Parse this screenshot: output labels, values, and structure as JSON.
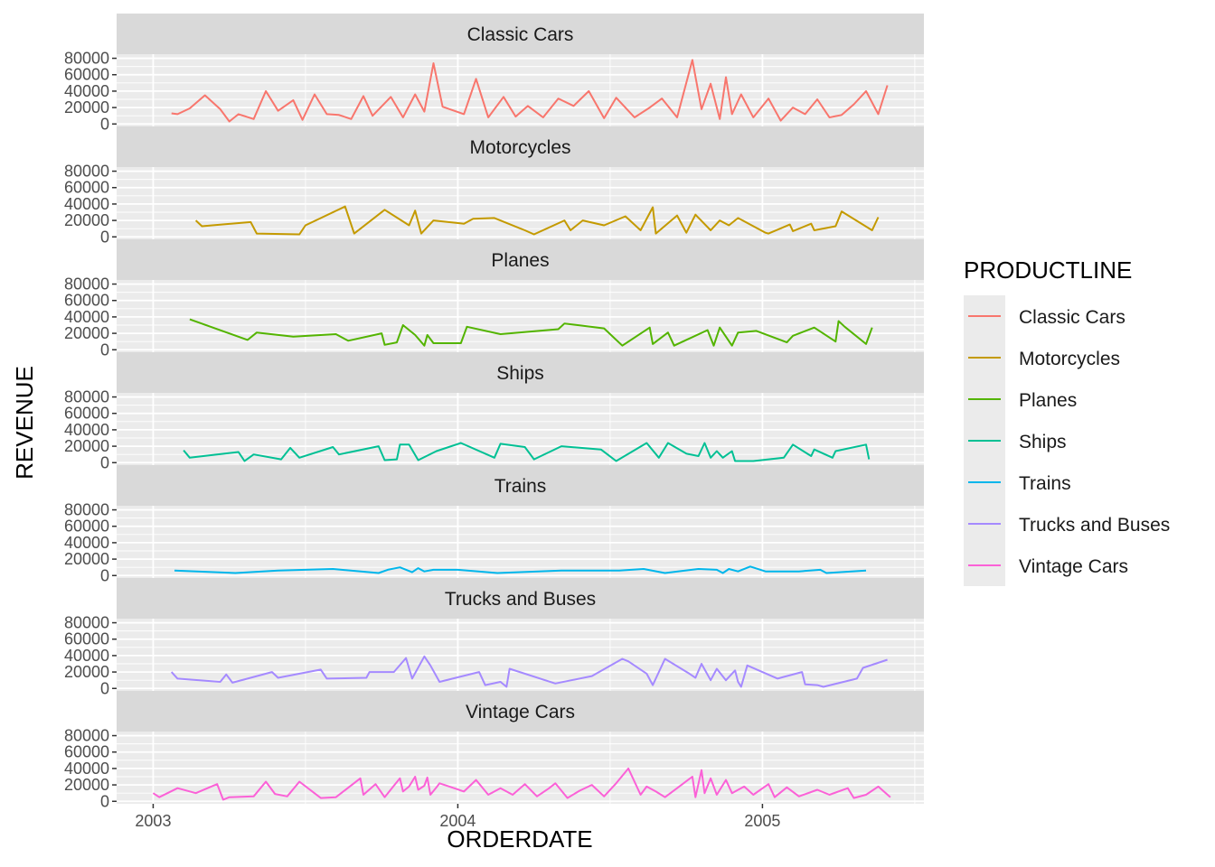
{
  "chart_data": {
    "type": "line",
    "facet": "vertical",
    "xlabel": "ORDERDATE",
    "ylabel": "REVENUE",
    "x_ticks": [
      "2003",
      "2004",
      "2005"
    ],
    "x_tick_values": [
      2003.0,
      2004.0,
      2005.0
    ],
    "xlim": [
      2002.88,
      2005.53
    ],
    "y_ticks": [
      "0",
      "20000",
      "40000",
      "60000",
      "80000"
    ],
    "y_tick_values": [
      0,
      20000,
      40000,
      60000,
      80000
    ],
    "ylim": [
      -3000,
      85000
    ],
    "grid": true,
    "legend": {
      "title": "PRODUCTLINE",
      "position": "right"
    },
    "series": [
      {
        "name": "Classic Cars",
        "color": "#F8766D",
        "x": [
          2003.06,
          2003.08,
          2003.12,
          2003.17,
          2003.22,
          2003.25,
          2003.28,
          2003.33,
          2003.37,
          2003.41,
          2003.46,
          2003.49,
          2003.53,
          2003.57,
          2003.61,
          2003.65,
          2003.69,
          2003.72,
          2003.78,
          2003.82,
          2003.86,
          2003.89,
          2003.92,
          2003.95,
          2004.02,
          2004.06,
          2004.1,
          2004.15,
          2004.19,
          2004.23,
          2004.28,
          2004.33,
          2004.38,
          2004.43,
          2004.48,
          2004.52,
          2004.58,
          2004.63,
          2004.67,
          2004.72,
          2004.77,
          2004.8,
          2004.83,
          2004.86,
          2004.88,
          2004.9,
          2004.93,
          2004.97,
          2005.02,
          2005.06,
          2005.1,
          2005.14,
          2005.18,
          2005.22,
          2005.26,
          2005.3,
          2005.34,
          2005.38,
          2005.41
        ],
        "y": [
          13000,
          12000,
          19000,
          35000,
          18000,
          3000,
          12000,
          6000,
          40000,
          16000,
          29000,
          5000,
          36000,
          12000,
          11000,
          6000,
          34000,
          10000,
          33000,
          8000,
          36000,
          15000,
          74000,
          21000,
          12000,
          55000,
          8000,
          33000,
          9000,
          22000,
          8000,
          31000,
          22000,
          40000,
          7000,
          32000,
          8000,
          20000,
          31000,
          8000,
          78000,
          18000,
          49000,
          6000,
          57000,
          12000,
          36000,
          8000,
          31000,
          4000,
          20000,
          12000,
          30000,
          8000,
          11000,
          24000,
          40000,
          12000,
          47000
        ]
      },
      {
        "name": "Motorcycles",
        "color": "#C49A00",
        "x": [
          2003.14,
          2003.16,
          2003.32,
          2003.34,
          2003.48,
          2003.5,
          2003.63,
          2003.66,
          2003.76,
          2003.84,
          2003.86,
          2003.88,
          2003.92,
          2004.02,
          2004.05,
          2004.12,
          2004.22,
          2004.25,
          2004.35,
          2004.37,
          2004.41,
          2004.48,
          2004.55,
          2004.6,
          2004.64,
          2004.65,
          2004.72,
          2004.75,
          2004.78,
          2004.83,
          2004.86,
          2004.89,
          2004.92,
          2005.01,
          2005.02,
          2005.09,
          2005.1,
          2005.16,
          2005.17,
          2005.24,
          2005.26,
          2005.36,
          2005.38
        ],
        "y": [
          20000,
          13000,
          18000,
          4000,
          3000,
          14000,
          37000,
          4000,
          33000,
          14000,
          32000,
          4000,
          20000,
          16000,
          22000,
          23000,
          8000,
          3000,
          20000,
          8000,
          20000,
          14000,
          25000,
          8000,
          36000,
          4000,
          26000,
          5000,
          27000,
          8000,
          20000,
          14000,
          23000,
          5000,
          4000,
          15000,
          7000,
          16000,
          8000,
          13000,
          31000,
          8000,
          24000
        ]
      },
      {
        "name": "Planes",
        "color": "#53B400",
        "x": [
          2003.12,
          2003.31,
          2003.34,
          2003.46,
          2003.6,
          2003.64,
          2003.75,
          2003.76,
          2003.8,
          2003.82,
          2003.86,
          2003.89,
          2003.9,
          2003.92,
          2004.01,
          2004.03,
          2004.14,
          2004.33,
          2004.35,
          2004.48,
          2004.54,
          2004.63,
          2004.64,
          2004.69,
          2004.71,
          2004.82,
          2004.84,
          2004.86,
          2004.9,
          2004.92,
          2004.98,
          2005.08,
          2005.1,
          2005.17,
          2005.24,
          2005.25,
          2005.27,
          2005.34,
          2005.36
        ],
        "y": [
          37000,
          12000,
          21000,
          16000,
          19000,
          11000,
          20000,
          6000,
          9000,
          30000,
          18000,
          5000,
          18000,
          8000,
          8000,
          28000,
          19000,
          25000,
          32000,
          26000,
          5000,
          27000,
          7000,
          21000,
          5000,
          24000,
          5000,
          27000,
          5000,
          21000,
          23000,
          9000,
          17000,
          27000,
          10000,
          35000,
          28000,
          7000,
          27000
        ]
      },
      {
        "name": "Ships",
        "color": "#00C094",
        "x": [
          2003.1,
          2003.12,
          2003.28,
          2003.3,
          2003.33,
          2003.42,
          2003.45,
          2003.48,
          2003.59,
          2003.61,
          2003.74,
          2003.76,
          2003.8,
          2003.81,
          2003.84,
          2003.87,
          2003.93,
          2004.01,
          2004.12,
          2004.14,
          2004.22,
          2004.25,
          2004.34,
          2004.47,
          2004.52,
          2004.62,
          2004.66,
          2004.69,
          2004.75,
          2004.79,
          2004.81,
          2004.83,
          2004.85,
          2004.87,
          2004.9,
          2004.91,
          2004.97,
          2005.07,
          2005.1,
          2005.16,
          2005.17,
          2005.23,
          2005.24,
          2005.34,
          2005.35
        ],
        "y": [
          15000,
          6000,
          13000,
          2000,
          10000,
          4000,
          18000,
          6000,
          19000,
          10000,
          20000,
          3000,
          4000,
          22000,
          22000,
          3000,
          14000,
          24000,
          6000,
          23000,
          19000,
          4000,
          20000,
          16000,
          2000,
          24000,
          6000,
          24000,
          11000,
          8000,
          24000,
          6000,
          14000,
          6000,
          14000,
          2000,
          2000,
          6000,
          22000,
          8000,
          16000,
          6000,
          14000,
          22000,
          4000
        ]
      },
      {
        "name": "Trains",
        "color": "#00B6EB",
        "x": [
          2003.07,
          2003.27,
          2003.41,
          2003.59,
          2003.74,
          2003.77,
          2003.81,
          2003.85,
          2003.87,
          2003.89,
          2003.92,
          2004.0,
          2004.13,
          2004.34,
          2004.53,
          2004.61,
          2004.68,
          2004.79,
          2004.85,
          2004.87,
          2004.89,
          2004.92,
          2004.96,
          2005.01,
          2005.12,
          2005.19,
          2005.21,
          2005.34
        ],
        "y": [
          6000,
          3000,
          6000,
          8000,
          3000,
          7000,
          10000,
          4000,
          9000,
          5000,
          7000,
          7000,
          3000,
          6000,
          6000,
          8000,
          3000,
          8000,
          7000,
          3000,
          8000,
          5000,
          11000,
          5000,
          5000,
          7000,
          3000,
          6000
        ]
      },
      {
        "name": "Trucks and Buses",
        "color": "#A58AFF",
        "x": [
          2003.06,
          2003.08,
          2003.22,
          2003.24,
          2003.26,
          2003.39,
          2003.41,
          2003.55,
          2003.57,
          2003.7,
          2003.71,
          2003.79,
          2003.83,
          2003.85,
          2003.89,
          2003.91,
          2003.94,
          2004.07,
          2004.09,
          2004.14,
          2004.16,
          2004.17,
          2004.32,
          2004.44,
          2004.54,
          2004.56,
          2004.62,
          2004.64,
          2004.68,
          2004.76,
          2004.78,
          2004.8,
          2004.83,
          2004.85,
          2004.88,
          2004.91,
          2004.92,
          2004.93,
          2004.95,
          2005.05,
          2005.07,
          2005.13,
          2005.14,
          2005.18,
          2005.2,
          2005.31,
          2005.33,
          2005.41
        ],
        "y": [
          20000,
          12000,
          8000,
          17000,
          7000,
          20000,
          13000,
          23000,
          12000,
          13000,
          20000,
          20000,
          37000,
          12000,
          39000,
          28000,
          8000,
          20000,
          4000,
          8000,
          2000,
          24000,
          6000,
          15000,
          36000,
          33000,
          18000,
          4000,
          36000,
          18000,
          13000,
          30000,
          10000,
          24000,
          10000,
          22000,
          8000,
          2000,
          28000,
          12000,
          14000,
          20000,
          5000,
          4000,
          2000,
          12000,
          25000,
          35000
        ]
      },
      {
        "name": "Vintage Cars",
        "color": "#FB61D7",
        "x": [
          2003.0,
          2003.02,
          2003.08,
          2003.14,
          2003.21,
          2003.23,
          2003.25,
          2003.33,
          2003.37,
          2003.4,
          2003.44,
          2003.48,
          2003.55,
          2003.6,
          2003.68,
          2003.69,
          2003.73,
          2003.76,
          2003.79,
          2003.81,
          2003.82,
          2003.84,
          2003.86,
          2003.87,
          2003.89,
          2003.9,
          2003.91,
          2003.93,
          2003.94,
          2004.02,
          2004.06,
          2004.1,
          2004.14,
          2004.18,
          2004.22,
          2004.26,
          2004.3,
          2004.32,
          2004.36,
          2004.4,
          2004.44,
          2004.48,
          2004.52,
          2004.56,
          2004.6,
          2004.62,
          2004.65,
          2004.68,
          2004.72,
          2004.77,
          2004.78,
          2004.8,
          2004.81,
          2004.83,
          2004.85,
          2004.88,
          2004.9,
          2004.94,
          2004.97,
          2005.02,
          2005.04,
          2005.08,
          2005.12,
          2005.18,
          2005.22,
          2005.28,
          2005.3,
          2005.34,
          2005.38,
          2005.42
        ],
        "y": [
          10000,
          5000,
          16000,
          10000,
          21000,
          2000,
          5000,
          6000,
          24000,
          9000,
          6000,
          24000,
          4000,
          5000,
          28000,
          8000,
          21000,
          5000,
          19000,
          28000,
          12000,
          18000,
          30000,
          14000,
          19000,
          29000,
          8000,
          17000,
          22000,
          12000,
          26000,
          8000,
          16000,
          8000,
          21000,
          6000,
          16000,
          22000,
          4000,
          13000,
          20000,
          6000,
          22000,
          40000,
          8000,
          18000,
          12000,
          5000,
          16000,
          30000,
          5000,
          38000,
          10000,
          28000,
          8000,
          26000,
          10000,
          18000,
          8000,
          21000,
          5000,
          17000,
          6000,
          14000,
          8000,
          16000,
          4000,
          8000,
          18000,
          5000
        ]
      }
    ]
  }
}
